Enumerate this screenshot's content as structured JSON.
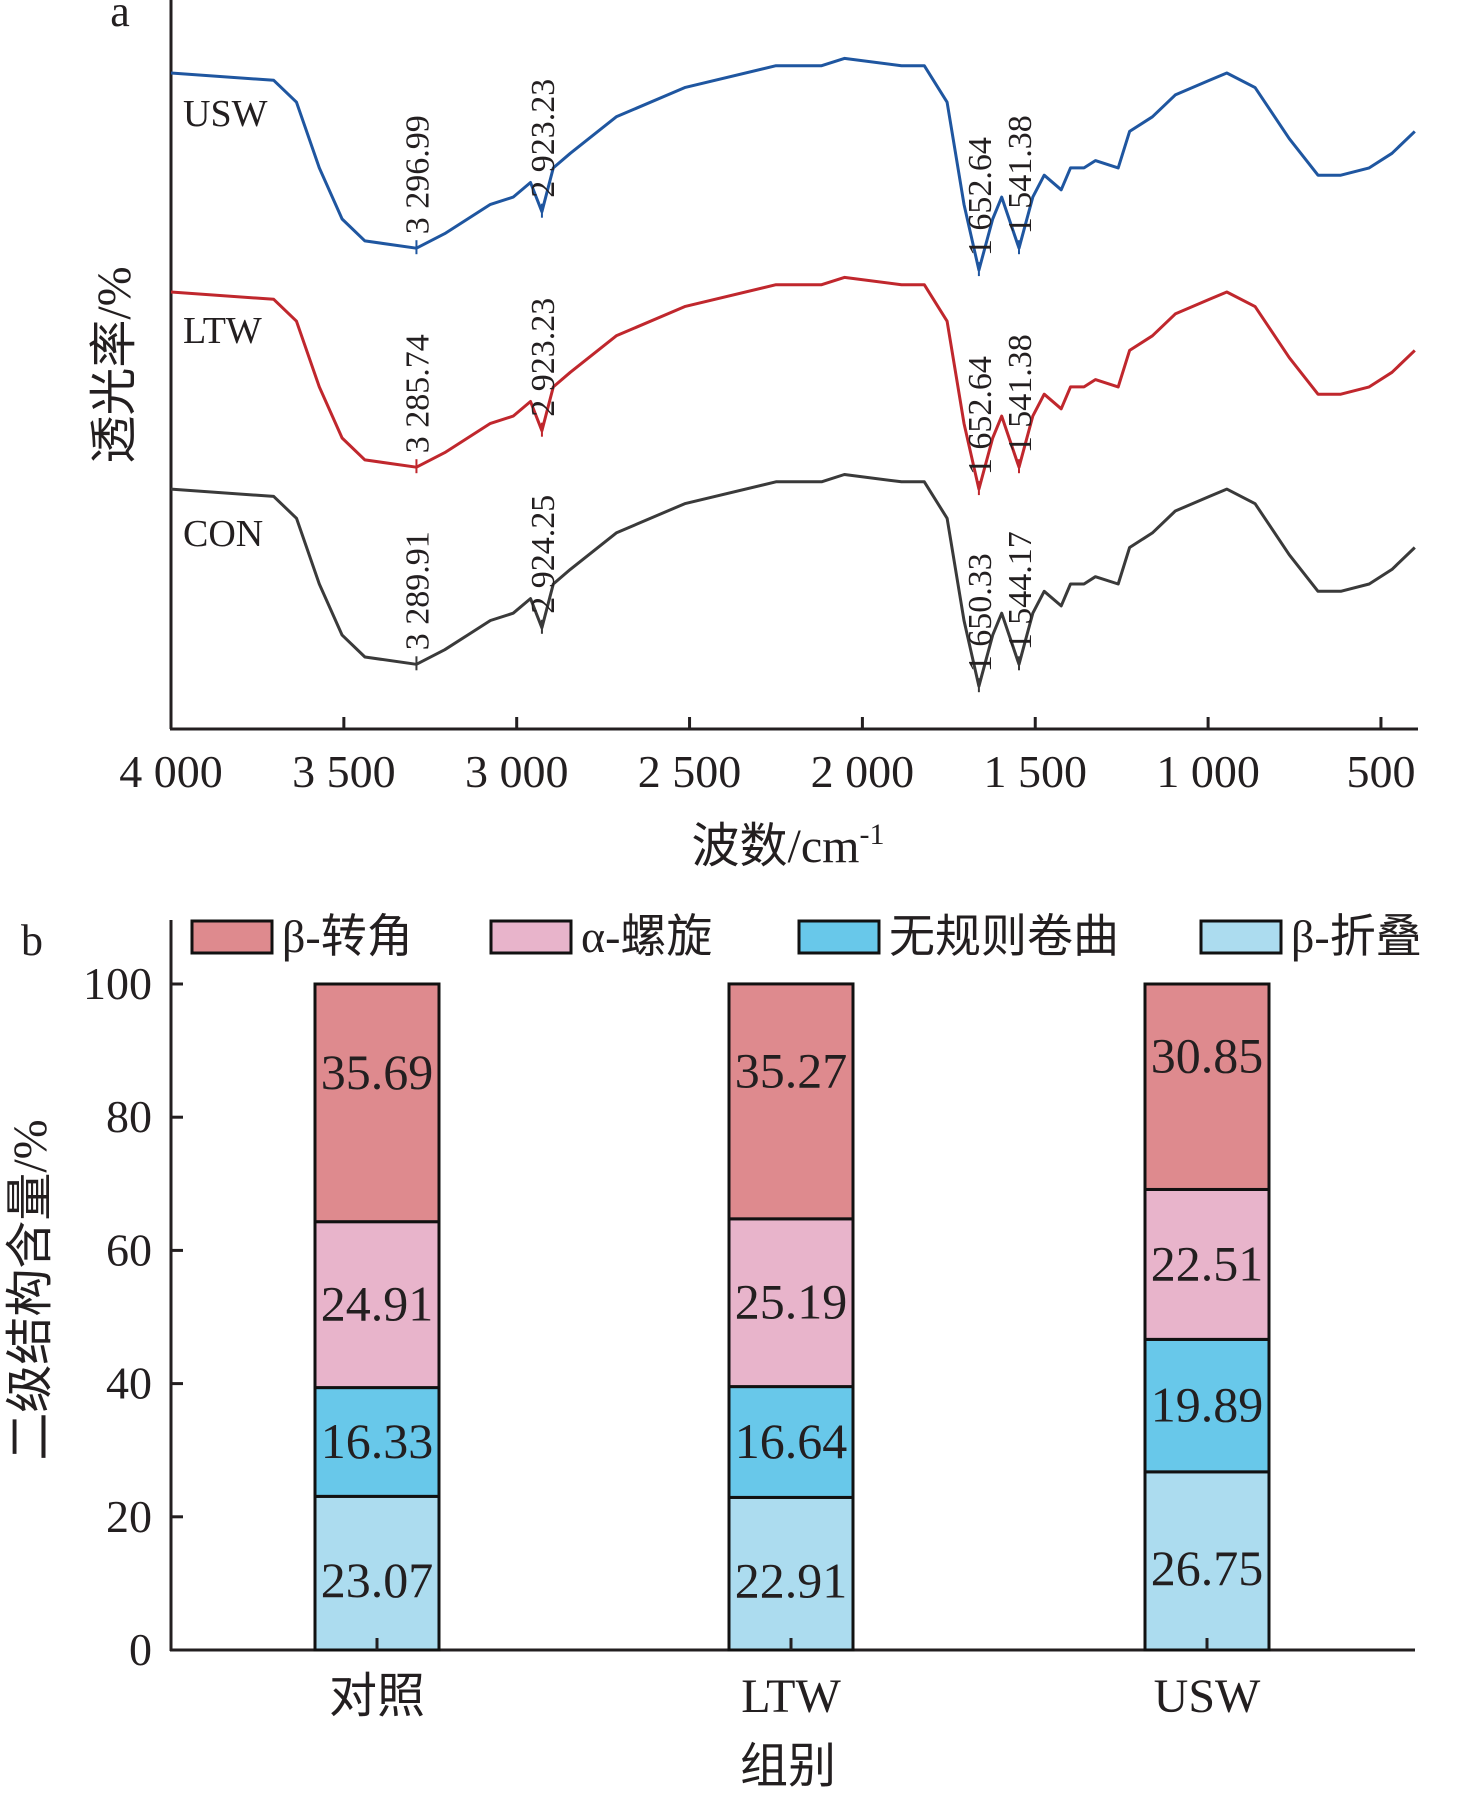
{
  "chart_data": [
    {
      "panel": "a",
      "type": "line",
      "xlabel": "波数/cm",
      "xlabel_sup": "-1",
      "ylabel": "透光率/%",
      "xlim": [
        4000,
        400
      ],
      "x_ticks": [
        "4 000",
        "3 500",
        "3 000",
        "2 500",
        "2 000",
        "1 500",
        "1 000",
        "500"
      ],
      "x_tick_values": [
        4000,
        3500,
        3000,
        2500,
        2000,
        1500,
        1000,
        500
      ],
      "y_ticks_shown": false,
      "grid": false,
      "x": [
        4000,
        3703,
        3637,
        3571,
        3505,
        3439,
        3290,
        3208,
        3142,
        3076,
        3010,
        2960,
        2927,
        2894,
        2845,
        2712,
        2514,
        2250,
        2118,
        2052,
        1887,
        1821,
        1755,
        1706,
        1663,
        1623,
        1597,
        1547,
        1507,
        1474,
        1425,
        1398,
        1359,
        1326,
        1260,
        1227,
        1161,
        1095,
        996,
        946,
        864,
        765,
        682,
        616,
        534,
        468,
        402
      ],
      "series": [
        {
          "name": "USW",
          "color": "#1f56a0",
          "values": [
            90,
            89,
            86,
            77,
            70,
            67,
            66,
            68,
            70,
            72,
            73,
            75,
            71,
            77,
            79,
            84,
            88,
            91,
            91,
            92,
            91,
            91,
            86,
            72,
            63,
            70,
            73,
            66,
            73,
            76,
            74,
            77,
            77,
            78,
            77,
            82,
            84,
            87,
            89,
            90,
            88,
            81,
            76,
            76,
            77,
            79,
            82
          ],
          "peaks": [
            {
              "label": "3 296.99",
              "x": 3290
            },
            {
              "label": "2 923.23",
              "x": 2927
            },
            {
              "label": "1 652.64",
              "x": 1663
            },
            {
              "label": "1 541.38",
              "x": 1547
            }
          ]
        },
        {
          "name": "LTW",
          "color": "#c0272d",
          "values": [
            60,
            59,
            56,
            47,
            40,
            37,
            36,
            38,
            40,
            42,
            43,
            45,
            41,
            47,
            49,
            54,
            58,
            61,
            61,
            62,
            61,
            61,
            56,
            42,
            33,
            40,
            43,
            36,
            43,
            46,
            44,
            47,
            47,
            48,
            47,
            52,
            54,
            57,
            59,
            60,
            58,
            51,
            46,
            46,
            47,
            49,
            52
          ],
          "peaks": [
            {
              "label": "3 285.74",
              "x": 3290
            },
            {
              "label": "2 923.23",
              "x": 2927
            },
            {
              "label": "1 652.64",
              "x": 1663
            },
            {
              "label": "1 541.38",
              "x": 1547
            }
          ]
        },
        {
          "name": "CON",
          "color": "#3a3a3a",
          "values": [
            33,
            32,
            29,
            20,
            13,
            10,
            9,
            11,
            13,
            15,
            16,
            18,
            14,
            20,
            22,
            27,
            31,
            34,
            34,
            35,
            34,
            34,
            29,
            15,
            6,
            13,
            16,
            9,
            16,
            19,
            17,
            20,
            20,
            21,
            20,
            25,
            27,
            30,
            32,
            33,
            31,
            24,
            19,
            19,
            20,
            22,
            25
          ],
          "peaks": [
            {
              "label": "3 289.91",
              "x": 3290
            },
            {
              "label": "2 924.25",
              "x": 2927
            },
            {
              "label": "1 650.33",
              "x": 1663
            },
            {
              "label": "1 544.17",
              "x": 1547
            }
          ]
        }
      ]
    },
    {
      "panel": "b",
      "type": "bar",
      "stacked": true,
      "xlabel": "组别",
      "ylabel": "二级结构含量/%",
      "ylim": [
        0,
        100
      ],
      "y_ticks": [
        0,
        20,
        40,
        60,
        80,
        100
      ],
      "categories": [
        "对照",
        "LTW",
        "USW"
      ],
      "legend_position": "top",
      "series": [
        {
          "name": "β-折叠",
          "color": "#acdcef",
          "values": [
            23.07,
            22.91,
            26.75
          ],
          "labels": [
            "23.07",
            "22.91",
            "26.75"
          ]
        },
        {
          "name": "无规则卷曲",
          "color": "#68c8ea",
          "values": [
            16.33,
            16.64,
            19.89
          ],
          "labels": [
            "16.33",
            "16.64",
            "19.89"
          ]
        },
        {
          "name": "α-螺旋",
          "color": "#e8b4cb",
          "values": [
            24.91,
            25.19,
            22.51
          ],
          "labels": [
            "24.91",
            "25.19",
            "22.51"
          ]
        },
        {
          "name": "β-转角",
          "color": "#de8a8e",
          "values": [
            35.69,
            35.27,
            30.85
          ],
          "labels": [
            "35.69",
            "35.27",
            "30.85"
          ]
        }
      ],
      "legend_order": [
        "β-转角",
        "α-螺旋",
        "无规则卷曲",
        "β-折叠"
      ]
    }
  ],
  "panel_labels": {
    "a": "a",
    "b": "b"
  }
}
